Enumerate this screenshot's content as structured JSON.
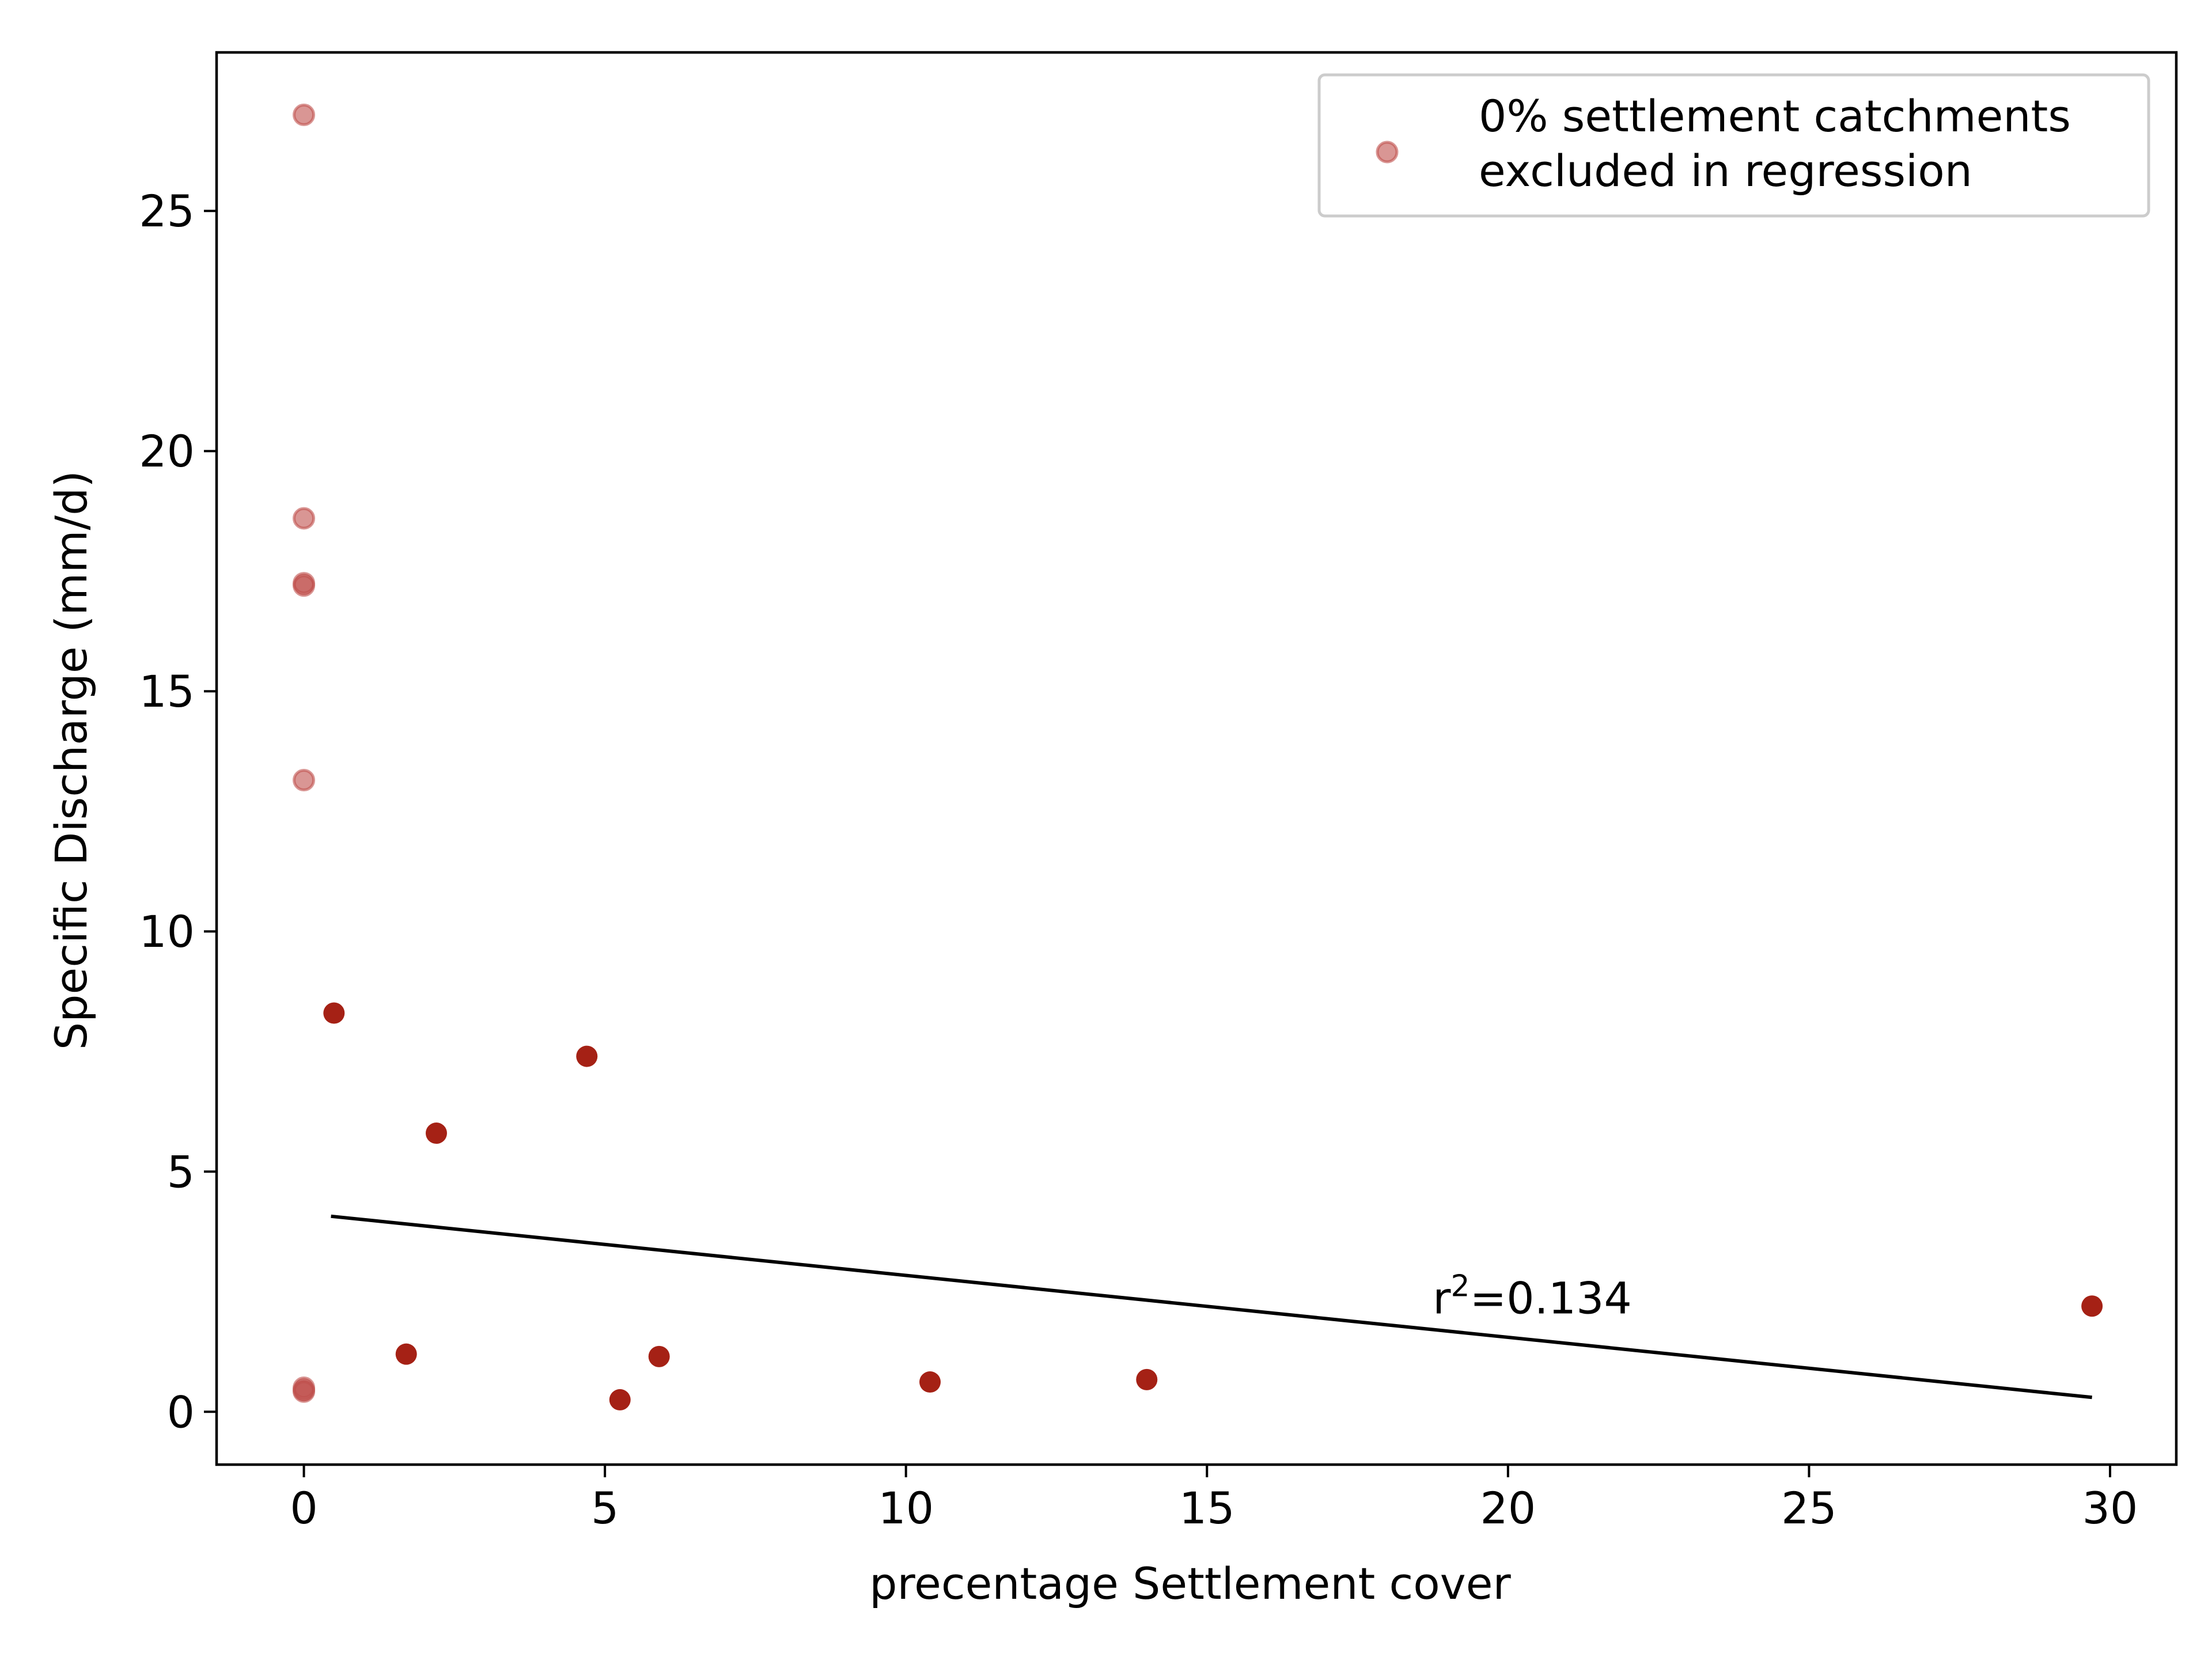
{
  "chart_data": {
    "type": "scatter",
    "xlabel": "precentage Settlement cover",
    "ylabel": "Specific Discharge (mm/d)",
    "xlim": [
      -1.45,
      31.1
    ],
    "ylim": [
      -1.1,
      28.3
    ],
    "x_ticks": [
      0,
      5,
      10,
      15,
      20,
      25,
      30
    ],
    "y_ticks": [
      0,
      5,
      10,
      15,
      20,
      25
    ],
    "grid": false,
    "legend_position": "top-right",
    "series": [
      {
        "name": "0% settlement catchments\nexcluded in regression",
        "color": "#c0504d",
        "marker": "circle-translucent",
        "x": [
          0,
          0,
          0,
          0,
          0,
          0,
          0,
          0
        ],
        "y": [
          27.0,
          18.6,
          17.2,
          17.25,
          13.15,
          0.5,
          0.42,
          0.45
        ]
      },
      {
        "color": "#a52115",
        "marker": "circle",
        "x": [
          0.5,
          1.7,
          2.2,
          4.7,
          5.25,
          5.9,
          10.4,
          14.0,
          29.7
        ],
        "y": [
          8.3,
          1.2,
          5.8,
          7.4,
          0.25,
          1.15,
          0.62,
          0.67,
          2.2
        ]
      }
    ],
    "regression_line": {
      "color": "#000000",
      "x": [
        0.45,
        29.7
      ],
      "y": [
        4.07,
        0.3
      ]
    },
    "annotation": {
      "base": "r",
      "superscript": "2",
      "rest": "=0.134",
      "x": 18.75,
      "y": 2.05
    }
  }
}
